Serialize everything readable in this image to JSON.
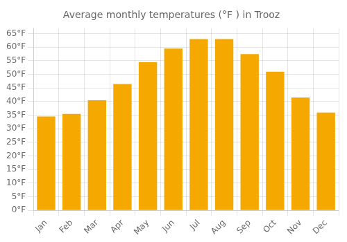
{
  "chart_data": {
    "type": "bar",
    "title": "Average monthly temperatures (°F ) in Trooz",
    "categories": [
      "Jan",
      "Feb",
      "Mar",
      "Apr",
      "May",
      "Jun",
      "Jul",
      "Aug",
      "Sep",
      "Oct",
      "Nov",
      "Dec"
    ],
    "values": [
      34.5,
      35.5,
      40.5,
      46.5,
      54.5,
      59.5,
      63.0,
      63.0,
      57.5,
      51.0,
      41.5,
      36.0
    ],
    "color": "#F5A800",
    "ylim": [
      0,
      67
    ],
    "yticks": [
      {
        "value": 0,
        "label": "0°F"
      },
      {
        "value": 5,
        "label": "5°F"
      },
      {
        "value": 10,
        "label": "10°F"
      },
      {
        "value": 15,
        "label": "15°F"
      },
      {
        "value": 20,
        "label": "20°F"
      },
      {
        "value": 25,
        "label": "25°F"
      },
      {
        "value": 30,
        "label": "30°F"
      },
      {
        "value": 35,
        "label": "35°F"
      },
      {
        "value": 40,
        "label": "40°F"
      },
      {
        "value": 45,
        "label": "45°F"
      },
      {
        "value": 50,
        "label": "50°F"
      },
      {
        "value": 55,
        "label": "55°F"
      },
      {
        "value": 60,
        "label": "60°F"
      },
      {
        "value": 65,
        "label": "65°F"
      }
    ],
    "grid": true
  }
}
